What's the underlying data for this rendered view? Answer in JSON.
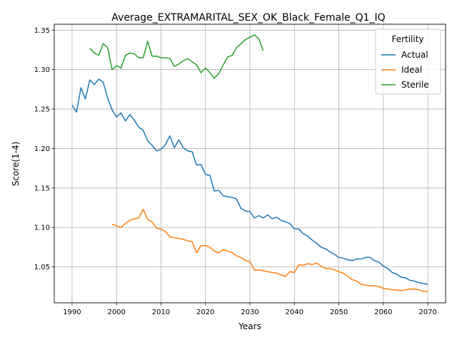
{
  "chart_data": {
    "type": "line",
    "title": "Average_EXTRAMARITAL_SEX_OK_Black_Female_Q1_IQ",
    "xlabel": "Years",
    "ylabel": "Score(1-4)",
    "xlim": [
      1986.0,
      2074.0
    ],
    "ylim": [
      1.0045,
      1.3575
    ],
    "xticks": [
      1990,
      2000,
      2010,
      2020,
      2030,
      2040,
      2050,
      2060,
      2070
    ],
    "yticks": [
      1.05,
      1.1,
      1.15,
      1.2,
      1.25,
      1.3,
      1.35
    ],
    "grid": true,
    "legend": {
      "title": "Fertility",
      "position": "top-right"
    },
    "series": [
      {
        "name": "Actual",
        "color": "#1f77b4",
        "x": [
          1990,
          1991,
          1992,
          1993,
          1994,
          1995,
          1996,
          1997,
          1998,
          1999,
          2000,
          2001,
          2002,
          2003,
          2004,
          2005,
          2006,
          2007,
          2008,
          2009,
          2010,
          2011,
          2012,
          2013,
          2014,
          2015,
          2016,
          2017,
          2018,
          2019,
          2020,
          2021,
          2022,
          2023,
          2024,
          2025,
          2026,
          2027,
          2028,
          2029,
          2030,
          2031,
          2032,
          2033,
          2034,
          2035,
          2036,
          2037,
          2038,
          2039,
          2040,
          2041,
          2042,
          2043,
          2044,
          2045,
          2046,
          2047,
          2048,
          2049,
          2050,
          2051,
          2052,
          2053,
          2054,
          2055,
          2056,
          2057,
          2058,
          2059,
          2060,
          2061,
          2062,
          2063,
          2064,
          2065,
          2066,
          2067,
          2068,
          2069,
          2070
        ],
        "y": [
          1.255,
          1.246,
          1.277,
          1.263,
          1.287,
          1.281,
          1.288,
          1.284,
          1.264,
          1.249,
          1.24,
          1.245,
          1.235,
          1.243,
          1.236,
          1.227,
          1.223,
          1.21,
          1.204,
          1.197,
          1.199,
          1.205,
          1.216,
          1.201,
          1.211,
          1.201,
          1.197,
          1.196,
          1.179,
          1.18,
          1.167,
          1.166,
          1.146,
          1.147,
          1.14,
          1.139,
          1.138,
          1.136,
          1.124,
          1.121,
          1.12,
          1.112,
          1.115,
          1.112,
          1.116,
          1.111,
          1.113,
          1.109,
          1.107,
          1.105,
          1.098,
          1.098,
          1.092,
          1.089,
          1.084,
          1.08,
          1.075,
          1.073,
          1.069,
          1.066,
          1.062,
          1.061,
          1.059,
          1.058,
          1.06,
          1.06,
          1.062,
          1.062,
          1.058,
          1.056,
          1.051,
          1.048,
          1.043,
          1.041,
          1.037,
          1.036,
          1.033,
          1.032,
          1.03,
          1.029,
          1.028
        ]
      },
      {
        "name": "Ideal",
        "color": "#ff7f0e",
        "x": [
          1999,
          2000,
          2001,
          2002,
          2003,
          2004,
          2005,
          2006,
          2007,
          2008,
          2009,
          2010,
          2011,
          2012,
          2013,
          2014,
          2015,
          2016,
          2017,
          2018,
          2019,
          2020,
          2021,
          2022,
          2023,
          2024,
          2025,
          2026,
          2027,
          2028,
          2029,
          2030,
          2031,
          2032,
          2033,
          2034,
          2035,
          2036,
          2037,
          2038,
          2039,
          2040,
          2041,
          2042,
          2043,
          2044,
          2045,
          2046,
          2047,
          2048,
          2049,
          2050,
          2051,
          2052,
          2053,
          2054,
          2055,
          2056,
          2057,
          2058,
          2059,
          2060,
          2061,
          2062,
          2063,
          2064,
          2065,
          2066,
          2067,
          2068,
          2069,
          2070
        ],
        "y": [
          1.104,
          1.102,
          1.1,
          1.105,
          1.109,
          1.111,
          1.112,
          1.123,
          1.11,
          1.107,
          1.099,
          1.098,
          1.095,
          1.088,
          1.087,
          1.086,
          1.085,
          1.083,
          1.082,
          1.068,
          1.077,
          1.077,
          1.075,
          1.07,
          1.068,
          1.072,
          1.07,
          1.068,
          1.064,
          1.062,
          1.058,
          1.057,
          1.046,
          1.046,
          1.045,
          1.044,
          1.043,
          1.042,
          1.04,
          1.038,
          1.044,
          1.043,
          1.053,
          1.052,
          1.054,
          1.053,
          1.055,
          1.051,
          1.048,
          1.048,
          1.046,
          1.044,
          1.042,
          1.038,
          1.034,
          1.032,
          1.028,
          1.027,
          1.026,
          1.026,
          1.025,
          1.023,
          1.022,
          1.021,
          1.021,
          1.02,
          1.021,
          1.022,
          1.022,
          1.021,
          1.019,
          1.019
        ]
      },
      {
        "name": "Sterile",
        "color": "#2ca02c",
        "x": [
          1994,
          1995,
          1996,
          1997,
          1998,
          1999,
          2000,
          2001,
          2002,
          2003,
          2004,
          2005,
          2006,
          2007,
          2008,
          2009,
          2010,
          2011,
          2012,
          2013,
          2014,
          2015,
          2016,
          2017,
          2018,
          2019,
          2020,
          2021,
          2022,
          2023,
          2024,
          2025,
          2026,
          2027,
          2028,
          2029,
          2030,
          2031,
          2032,
          2033
        ],
        "y": [
          1.327,
          1.321,
          1.318,
          1.333,
          1.328,
          1.3,
          1.305,
          1.302,
          1.318,
          1.321,
          1.32,
          1.315,
          1.315,
          1.336,
          1.317,
          1.317,
          1.315,
          1.315,
          1.314,
          1.304,
          1.307,
          1.311,
          1.314,
          1.31,
          1.306,
          1.296,
          1.302,
          1.296,
          1.289,
          1.295,
          1.306,
          1.316,
          1.318,
          1.328,
          1.333,
          1.338,
          1.341,
          1.344,
          1.339,
          1.324
        ]
      }
    ]
  }
}
